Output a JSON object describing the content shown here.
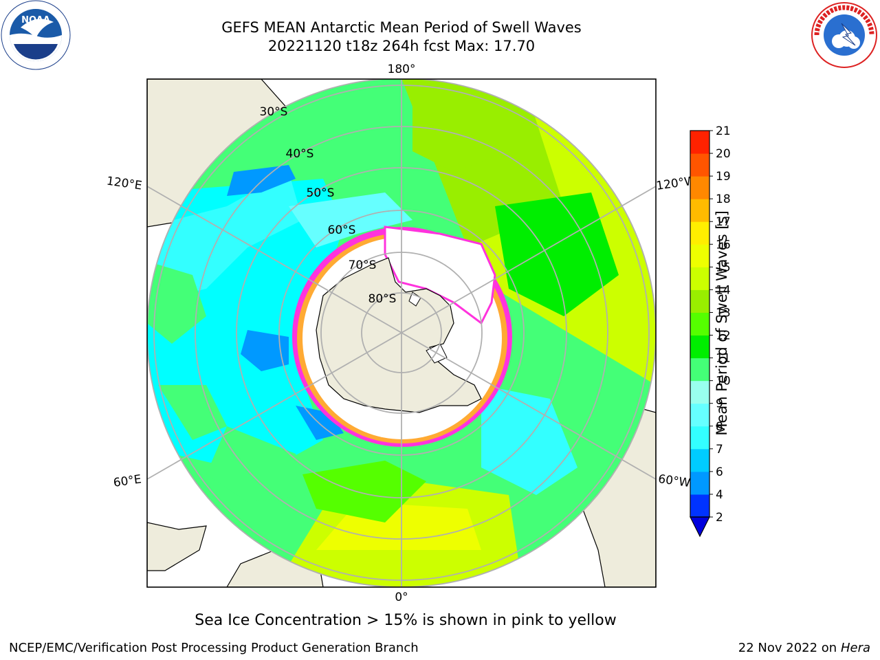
{
  "title_line1": "GEFS MEAN Antarctic Mean Period of Swell Waves",
  "title_line2": "20221120 t18z 264h fcst   Max: 17.70",
  "logos": {
    "left": "noaa-logo",
    "right": "nws-logo"
  },
  "graticule_labels": {
    "top": "180°",
    "bottom": "0°",
    "upper_left": "120°E",
    "upper_right": "120°W",
    "lower_left": "60°E",
    "lower_right": "60°W",
    "lat30": "30°S",
    "lat40": "40°S",
    "lat50": "50°S",
    "lat60": "60°S",
    "lat70": "70°S",
    "lat80": "80°S"
  },
  "colorbar": {
    "label": "Mean Period of Swell Waves [s]",
    "ticks": [
      "2",
      "4",
      "6",
      "7",
      "8",
      "9",
      "10",
      "11",
      "12",
      "13",
      "14",
      "15",
      "16",
      "17",
      "18",
      "19",
      "20",
      "21"
    ],
    "colors": [
      "#0033ff",
      "#0099ff",
      "#00ccff",
      "#33ffff",
      "#66ffff",
      "#99ffee",
      "#44ff77",
      "#00ee00",
      "#55ff00",
      "#99ee00",
      "#ccff00",
      "#eeff00",
      "#ffee00",
      "#ffbb00",
      "#ff8800",
      "#ff5500",
      "#ff2200",
      "#ff0000"
    ],
    "under_color": "#0000dd"
  },
  "footnote": "Sea Ice Concentration > 15% is shown in pink to yellow",
  "credit_left": "NCEP/EMC/Verification Post Processing Product Generation Branch",
  "credit_right_date": "22 Nov 2022 on",
  "credit_right_host": "Hera",
  "map_colors": {
    "land": "#eeecdc",
    "ice": "#ffffff",
    "ice_edge_pink": "#ff33dd",
    "ice_edge_orange": "#ffaa33",
    "grid": "#b0b0b0"
  }
}
